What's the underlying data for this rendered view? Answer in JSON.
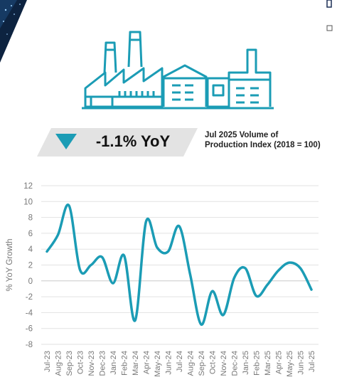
{
  "headline": {
    "yoy_value": "-1.1% YoY",
    "description_line1": "Jul 2025 Volume of",
    "description_line2": "Production Index (2018 = 100)"
  },
  "colors": {
    "accent": "#1b9cb5",
    "banner": "#e3e3e3",
    "corner": "#0d2340",
    "grid": "#e2e2e2",
    "axis_text": "#777777"
  },
  "icons": {
    "illustration": "factory-icon",
    "trend": "down-arrow-icon"
  },
  "chart_data": {
    "type": "line",
    "ylabel": "% YoY Growth",
    "ylim": [
      -8,
      12
    ],
    "yticks": [
      12,
      10,
      8,
      6,
      4,
      2,
      0,
      -2,
      -4,
      -6,
      -8
    ],
    "grid": true,
    "smooth": true,
    "categories": [
      "Jul-23",
      "Aug-23",
      "Sep-23",
      "Oct-23",
      "Nov-23",
      "Dec-23",
      "Jan-24",
      "Feb-24",
      "Mar-24",
      "Apr-24",
      "May-24",
      "Jun-24",
      "Jul-24",
      "Aug-24",
      "Sep-24",
      "Oct-24",
      "Nov-24",
      "Dec-24",
      "Jan-25",
      "Feb-25",
      "Mar-25",
      "Apr-25",
      "May-25",
      "Jun-25",
      "Jul-25"
    ],
    "series": [
      {
        "values": [
          3.7,
          5.8,
          9.5,
          1.4,
          2.0,
          3.0,
          -0.3,
          3.2,
          -5.0,
          7.5,
          4.2,
          3.7,
          6.9,
          0.8,
          -5.5,
          -1.3,
          -4.3,
          0.4,
          1.6,
          -1.9,
          -0.5,
          1.3,
          2.3,
          1.6,
          -1.1
        ]
      }
    ]
  }
}
